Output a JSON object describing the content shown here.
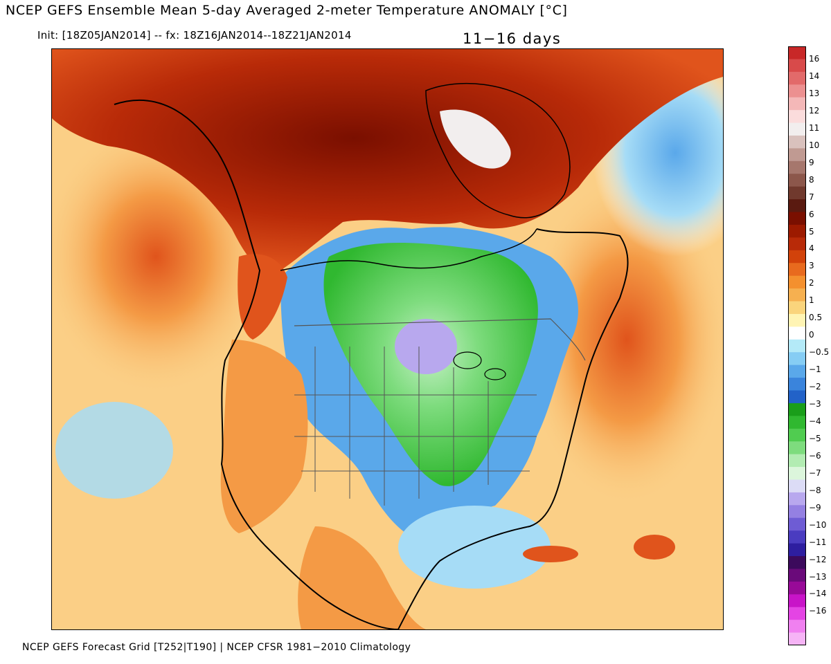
{
  "header": {
    "title": "NCEP GEFS Ensemble Mean 5-day Averaged 2-meter Temperature ANOMALY [°C]",
    "init_line": "Init: [18Z05JAN2014] -- fx: 18Z16JAN2014--18Z21JAN2014",
    "period": "11−16 days"
  },
  "footer": {
    "text": "NCEP GEFS Forecast Grid [T252|T190] | NCEP CFSR 1981−2010 Climatology"
  },
  "colorbar": {
    "unit": "°C",
    "labels": [
      "16",
      "14",
      "13",
      "12",
      "11",
      "10",
      "9",
      "8",
      "7",
      "6",
      "5",
      "4",
      "3",
      "2",
      "1",
      "0.5",
      "0",
      "−0.5",
      "−1",
      "−2",
      "−3",
      "−4",
      "−5",
      "−6",
      "−7",
      "−8",
      "−9",
      "−10",
      "−11",
      "−12",
      "−13",
      "−14",
      "−16"
    ],
    "colors": [
      "#c82828",
      "#d84a4a",
      "#e26a6a",
      "#ec9090",
      "#f4b8b8",
      "#fbdcdc",
      "#f2eeee",
      "#d9c1bd",
      "#c09a92",
      "#a6776d",
      "#8c574b",
      "#70392d",
      "#5a1a10",
      "#7a0f00",
      "#9c1a00",
      "#b82a08",
      "#d2420a",
      "#e86a1e",
      "#f4902e",
      "#f6b050",
      "#fad47c",
      "#fff4b4",
      "#ffffff",
      "#b4eaf8",
      "#86cdf4",
      "#5aa8ea",
      "#3a84dc",
      "#2262c8",
      "#1a9e1a",
      "#30b830",
      "#50cc50",
      "#7edc7e",
      "#b2ecb2",
      "#dcf6dc",
      "#dcdcf6",
      "#b8a8ee",
      "#9480e2",
      "#6e5cd4",
      "#4a3cc0",
      "#2e1ea0",
      "#3c0a5c",
      "#6a0a7a",
      "#980a98",
      "#c814c8",
      "#e444e4",
      "#f080f0",
      "#f6b4f6"
    ]
  },
  "map": {
    "region": "North America",
    "colors": {
      "ocean_warm": "#fbcf86",
      "warm": "#f49a45",
      "hot": "#e0541c",
      "very_hot": "#b82a08",
      "extreme": "#7a0f00",
      "neutral": "#ffffff",
      "cool": "#a6dcf6",
      "cold": "#5aa8ea",
      "colder": "#3a84dc",
      "green": "#30b830",
      "green_light": "#7edc7e",
      "green_pale": "#c6f0c6",
      "purple": "#b8a8ee",
      "ice": "#f2eeee",
      "line": "#000000",
      "border": "#555555"
    }
  }
}
